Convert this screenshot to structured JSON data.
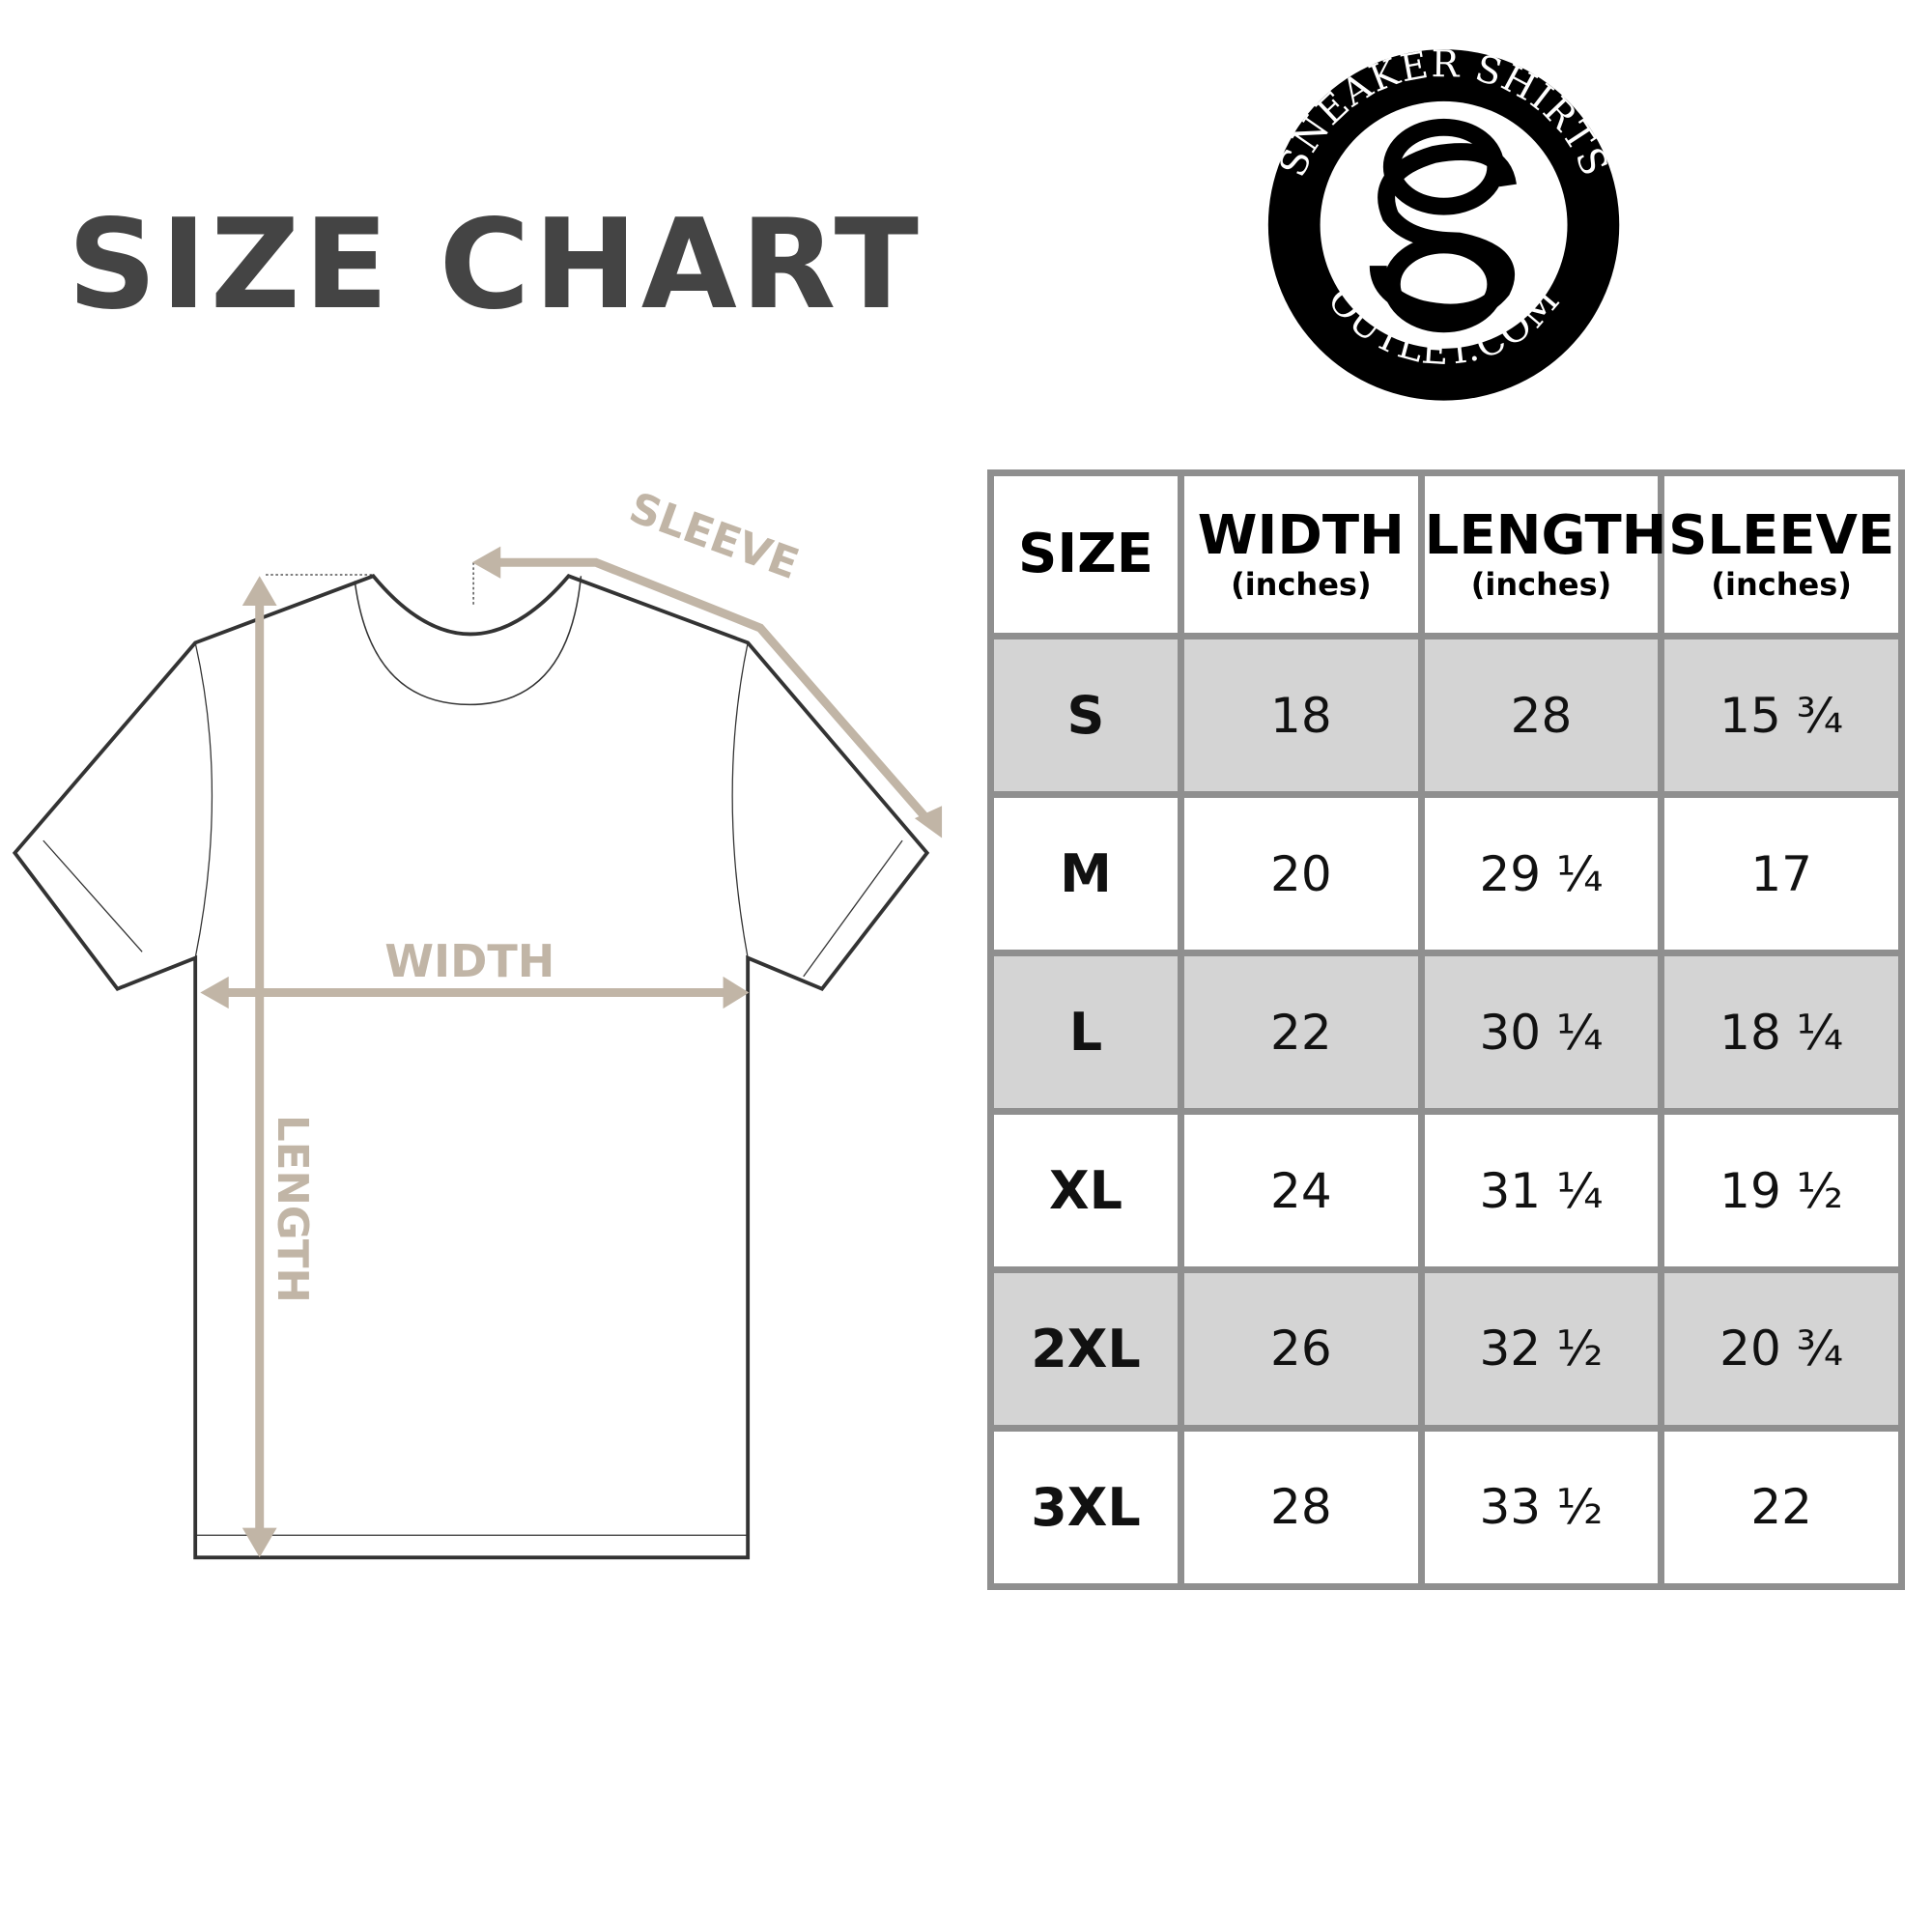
{
  "title": "SIZE CHART",
  "logo": {
    "top_text": "SNEAKER SHIRTS",
    "bottom_text": "OUTLET.COM",
    "monogram": "SO"
  },
  "diagram": {
    "sleeve_label": "SLEEVE",
    "width_label": "WIDTH",
    "length_label": "LENGTH",
    "arrow_color": "#c1b5a6"
  },
  "table": {
    "headers": [
      {
        "label": "SIZE",
        "unit": ""
      },
      {
        "label": "WIDTH",
        "unit": "(inches)"
      },
      {
        "label": "LENGTH",
        "unit": "(inches)"
      },
      {
        "label": "SLEEVE",
        "unit": "(inches)"
      }
    ],
    "rows": [
      [
        "S",
        "18",
        "28",
        "15 ¾"
      ],
      [
        "M",
        "20",
        "29 ¼",
        "17"
      ],
      [
        "L",
        "22",
        "30 ¼",
        "18 ¼"
      ],
      [
        "XL",
        "24",
        "31 ¼",
        "19 ½"
      ],
      [
        "2XL",
        "26",
        "32 ½",
        "20 ¾"
      ],
      [
        "3XL",
        "28",
        "33 ½",
        "22"
      ]
    ]
  }
}
